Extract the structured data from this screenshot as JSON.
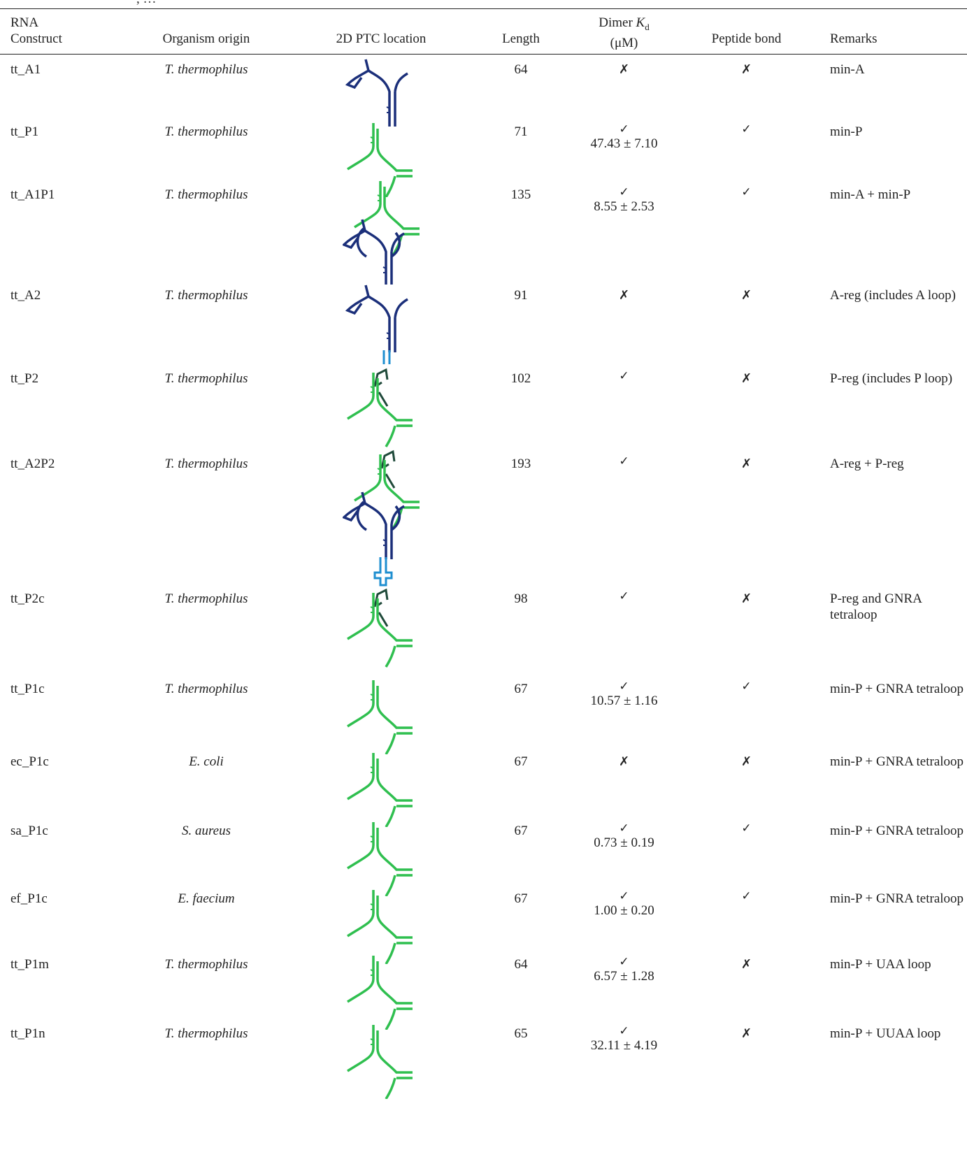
{
  "caption_fragment": ", …",
  "columns": {
    "construct_line1": "RNA",
    "construct_line2": "Construct",
    "organism": "Organism origin",
    "ptc": "2D PTC location",
    "length": "Length",
    "kd_line1_prefix": "Dimer ",
    "kd_symbol": "K",
    "kd_subscript": "d",
    "kd_line2": "(μM)",
    "peptide": "Peptide bond",
    "remarks": "Remarks"
  },
  "symbols": {
    "check": "✓",
    "cross": "✗"
  },
  "colors": {
    "a_region": "#1b2f7a",
    "p_region": "#2fbf4f",
    "a_loop": "#1f8fd0",
    "p_loop_dark": "#1f4a3a",
    "text": "#222222"
  },
  "rows": [
    {
      "construct": "tt_A1",
      "organism": "T. thermophilus",
      "length": "64",
      "dimer": false,
      "kd": "",
      "peptide": false,
      "remarks": "min-A",
      "ptc": "A1"
    },
    {
      "construct": "tt_P1",
      "organism": "T. thermophilus",
      "length": "71",
      "dimer": true,
      "kd": "47.43 ± 7.10",
      "peptide": true,
      "remarks": "min-P",
      "ptc": "P1"
    },
    {
      "construct": "tt_A1P1",
      "organism": "T. thermophilus",
      "length": "135",
      "dimer": true,
      "kd": "8.55 ± 2.53",
      "peptide": true,
      "remarks": "min-A + min-P",
      "ptc": "A1P1"
    },
    {
      "construct": "tt_A2",
      "organism": "T. thermophilus",
      "length": "91",
      "dimer": false,
      "kd": "",
      "peptide": false,
      "remarks": "A-reg (includes A loop)",
      "ptc": "A2"
    },
    {
      "construct": "tt_P2",
      "organism": "T. thermophilus",
      "length": "102",
      "dimer": true,
      "kd": "",
      "peptide": false,
      "remarks": "P-reg (includes P loop)",
      "ptc": "P2"
    },
    {
      "construct": "tt_A2P2",
      "organism": "T. thermophilus",
      "length": "193",
      "dimer": true,
      "kd": "",
      "peptide": false,
      "remarks": "A-reg + P-reg",
      "ptc": "A2P2"
    },
    {
      "construct": "tt_P2c",
      "organism": "T. thermophilus",
      "length": "98",
      "dimer": true,
      "kd": "",
      "peptide": false,
      "remarks": "P-reg and GNRA tetraloop",
      "ptc": "P2"
    },
    {
      "construct": "tt_P1c",
      "organism": "T. thermophilus",
      "length": "67",
      "dimer": true,
      "kd": "10.57 ± 1.16",
      "peptide": true,
      "remarks": "min-P + GNRA tetraloop",
      "ptc": "P1"
    },
    {
      "construct": "ec_P1c",
      "organism": "E. coli",
      "length": "67",
      "dimer": false,
      "kd": "",
      "peptide": false,
      "remarks": "min-P + GNRA tetraloop",
      "ptc": "P1"
    },
    {
      "construct": "sa_P1c",
      "organism": "S. aureus",
      "length": "67",
      "dimer": true,
      "kd": "0.73 ± 0.19",
      "peptide": true,
      "remarks": "min-P + GNRA tetraloop",
      "ptc": "P1"
    },
    {
      "construct": "ef_P1c",
      "organism": "E. faecium",
      "length": "67",
      "dimer": true,
      "kd": "1.00 ± 0.20",
      "peptide": true,
      "remarks": "min-P + GNRA tetraloop",
      "ptc": "P1"
    },
    {
      "construct": "tt_P1m",
      "organism": "T. thermophilus",
      "length": "64",
      "dimer": true,
      "kd": "6.57 ± 1.28",
      "peptide": false,
      "remarks": "min-P + UAA loop",
      "ptc": "P1"
    },
    {
      "construct": "tt_P1n",
      "organism": "T. thermophilus",
      "length": "65",
      "dimer": true,
      "kd": "32.11 ± 4.19",
      "peptide": false,
      "remarks": "min-P + UUAA loop",
      "ptc": "P1"
    }
  ]
}
